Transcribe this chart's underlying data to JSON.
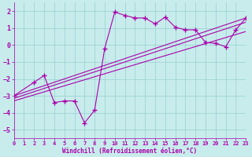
{
  "xlabel": "Windchill (Refroidissement éolien,°C)",
  "xlim": [
    0,
    23
  ],
  "ylim": [
    -5.5,
    2.5
  ],
  "yticks": [
    -5,
    -4,
    -3,
    -2,
    -1,
    0,
    1,
    2
  ],
  "xticks": [
    0,
    1,
    2,
    3,
    4,
    5,
    6,
    7,
    8,
    9,
    10,
    11,
    12,
    13,
    14,
    15,
    16,
    17,
    18,
    19,
    20,
    21,
    22,
    23
  ],
  "bg_color": "#c8ecec",
  "grid_color": "#9ed4d4",
  "line_color": "#aa00aa",
  "line_data": [
    [
      0,
      -3.0
    ],
    [
      2,
      -2.2
    ],
    [
      3,
      -1.8
    ],
    [
      4,
      -3.4
    ],
    [
      5,
      -3.3
    ],
    [
      6,
      -3.3
    ],
    [
      7,
      -4.6
    ],
    [
      8,
      -3.85
    ],
    [
      9,
      -0.2
    ],
    [
      10,
      1.95
    ],
    [
      11,
      1.75
    ],
    [
      12,
      1.6
    ],
    [
      13,
      1.6
    ],
    [
      14,
      1.25
    ],
    [
      15,
      1.65
    ],
    [
      16,
      1.05
    ],
    [
      17,
      0.9
    ],
    [
      18,
      0.9
    ],
    [
      19,
      0.15
    ],
    [
      20,
      0.1
    ],
    [
      21,
      -0.1
    ],
    [
      22,
      0.9
    ],
    [
      23,
      1.6
    ]
  ],
  "reg_lines": [
    [
      [
        0,
        -3.0
      ],
      [
        23,
        1.6
      ]
    ],
    [
      [
        0,
        -3.15
      ],
      [
        23,
        1.35
      ]
    ],
    [
      [
        0,
        -3.3
      ],
      [
        23,
        0.8
      ]
    ]
  ]
}
